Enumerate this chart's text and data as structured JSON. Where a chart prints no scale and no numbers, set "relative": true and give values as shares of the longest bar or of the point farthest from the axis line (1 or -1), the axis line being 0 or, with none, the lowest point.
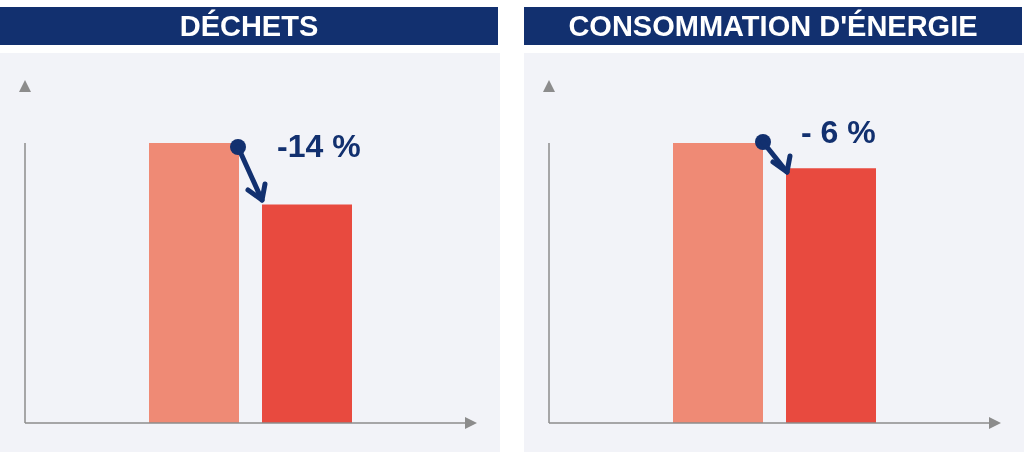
{
  "chart_data": [
    {
      "type": "bar",
      "title": "DÉCHETS",
      "categories": [
        null,
        null
      ],
      "values": [
        1,
        0.78
      ],
      "colors": [
        "#ef8a75",
        "#e84a3f"
      ],
      "relative": true,
      "annotations": [
        "-14 %"
      ]
    },
    {
      "type": "bar",
      "title": "CONSOMMATION D'ÉNERGIE",
      "categories": [
        null,
        null
      ],
      "values": [
        1,
        0.91
      ],
      "colors": [
        "#ef8a75",
        "#e84a3f"
      ],
      "relative": true,
      "annotations": [
        "- 6 %"
      ]
    }
  ]
}
